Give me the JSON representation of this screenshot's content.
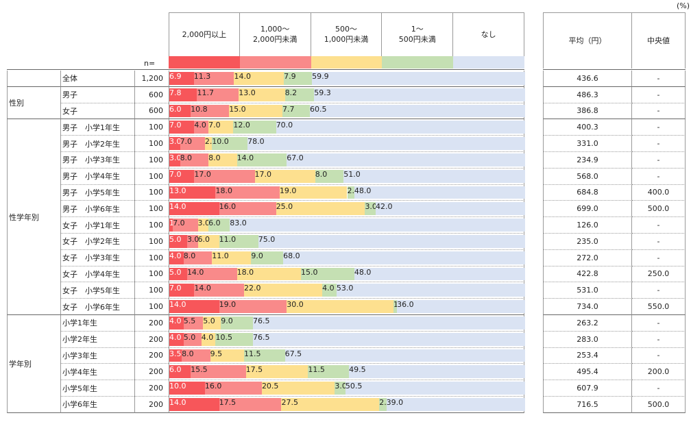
{
  "chart_data": {
    "type": "bar",
    "stacked": true,
    "orientation": "horizontal",
    "unit": "(%)",
    "n_label": "n=",
    "mean_header": "平均（円）",
    "median_header": "中央値",
    "row_groups": [
      null,
      "性別",
      "性別",
      "性学年別",
      "性学年別",
      "性学年別",
      "性学年別",
      "性学年別",
      "性学年別",
      "性学年別",
      "性学年別",
      "性学年別",
      "性学年別",
      "性学年別",
      "性学年別",
      "学年別",
      "学年別",
      "学年別",
      "学年別",
      "学年別",
      "学年別"
    ],
    "categories": [
      "全体",
      "男子",
      "女子",
      "男子　小学1年生",
      "男子　小学2年生",
      "男子　小学3年生",
      "男子　小学4年生",
      "男子　小学5年生",
      "男子　小学6年生",
      "女子　小学1年生",
      "女子　小学2年生",
      "女子　小学3年生",
      "女子　小学4年生",
      "女子　小学5年生",
      "女子　小学6年生",
      "小学1年生",
      "小学2年生",
      "小学3年生",
      "小学4年生",
      "小学5年生",
      "小学6年生"
    ],
    "n": [
      "1,200",
      "600",
      "600",
      "100",
      "100",
      "100",
      "100",
      "100",
      "100",
      "100",
      "100",
      "100",
      "100",
      "100",
      "100",
      "200",
      "200",
      "200",
      "200",
      "200",
      "200"
    ],
    "series": [
      {
        "name": "2,000円以上",
        "color": "#f7565a",
        "text_color": "#ffffff",
        "values": [
          6.9,
          7.8,
          6.0,
          7.0,
          3.0,
          3.0,
          7.0,
          13.0,
          14.0,
          1.0,
          5.0,
          4.0,
          5.0,
          7.0,
          14.0,
          4.0,
          4.0,
          3.5,
          6.0,
          10.0,
          14.0
        ],
        "value_labels": [
          "6.9",
          "7.8",
          "6.0",
          "7.0",
          "3.0",
          "3.0",
          "7.0",
          "13.0",
          "14.0",
          "1.0",
          "5.0",
          "4.0",
          "5.0",
          "7.0",
          "14.0",
          "4.0",
          "4.0",
          "3.5",
          "6.0",
          "10.0",
          "14.0"
        ]
      },
      {
        "name": "1,000～\n2,000円未満",
        "color": "#f98a8a",
        "text_color": "#222222",
        "values": [
          11.3,
          11.7,
          10.8,
          4.0,
          7.0,
          8.0,
          17.0,
          18.0,
          16.0,
          7.0,
          3.0,
          8.0,
          14.0,
          14.0,
          19.0,
          5.5,
          5.0,
          8.0,
          15.5,
          16.0,
          17.5
        ],
        "value_labels": [
          "11.3",
          "11.7",
          "10.8",
          "4.0",
          "7.0",
          "8.0",
          "17.0",
          "18.0",
          "16.0",
          "7.0",
          "3.0",
          "8.0",
          "14.0",
          "14.0",
          "19.0",
          "5.5",
          "5.0",
          "8.0",
          "15.5",
          "16.0",
          "17.5"
        ]
      },
      {
        "name": "500～\n1,000円未満",
        "color": "#fde08f",
        "text_color": "#222222",
        "values": [
          14.0,
          13.0,
          15.0,
          7.0,
          2.0,
          8.0,
          17.0,
          19.0,
          25.0,
          3.0,
          6.0,
          11.0,
          18.0,
          22.0,
          30.0,
          5.0,
          4.0,
          9.5,
          17.5,
          20.5,
          27.5
        ],
        "value_labels": [
          "14.0",
          "13.0",
          "15.0",
          "7.0",
          "2.0",
          "8.0",
          "17.0",
          "19.0",
          "25.0",
          "3.0",
          "6.0",
          "11.0",
          "18.0",
          "22.0",
          "30.0",
          "5.0",
          "4.0",
          "9.5",
          "17.5",
          "20.5",
          "27.5"
        ]
      },
      {
        "name": "1～\n500円未満",
        "color": "#c5e0b3",
        "text_color": "#222222",
        "values": [
          7.9,
          8.2,
          7.7,
          12.0,
          10.0,
          14.0,
          8.0,
          2.0,
          3.0,
          6.0,
          11.0,
          9.0,
          15.0,
          4.0,
          1.0,
          9.0,
          10.5,
          11.5,
          11.5,
          3.0,
          2.0
        ],
        "value_labels": [
          "7.9",
          "8.2",
          "7.7",
          "12.0",
          "10.0",
          "14.0",
          "8.0",
          "2.0",
          "3.0",
          "6.0",
          "11.0",
          "9.0",
          "15.0",
          "4.0",
          "1.0",
          "9.0",
          "10.5",
          "11.5",
          "11.5",
          "3.0",
          "2.0"
        ]
      },
      {
        "name": "なし",
        "color": "#dae3f3",
        "text_color": "#222222",
        "values": [
          59.9,
          59.3,
          60.5,
          70.0,
          78.0,
          67.0,
          51.0,
          48.0,
          42.0,
          83.0,
          75.0,
          68.0,
          48.0,
          53.0,
          36.0,
          76.5,
          76.5,
          67.5,
          49.5,
          50.5,
          39.0
        ],
        "value_labels": [
          "59.9",
          "59.3",
          "60.5",
          "70.0",
          "78.0",
          "67.0",
          "51.0",
          "48.0",
          "42.0",
          "83.0",
          "75.0",
          "68.0",
          "48.0",
          "53.0",
          "36.0",
          "76.5",
          "76.5",
          "67.5",
          "49.5",
          "50.5",
          "39.0"
        ]
      }
    ],
    "mean": [
      "436.6",
      "486.3",
      "386.8",
      "400.3",
      "331.0",
      "234.9",
      "568.0",
      "684.8",
      "699.0",
      "126.0",
      "235.0",
      "272.0",
      "422.8",
      "531.0",
      "734.0",
      "263.2",
      "283.0",
      "253.4",
      "495.4",
      "607.9",
      "716.5"
    ],
    "median": [
      "-",
      "-",
      "-",
      "-",
      "-",
      "-",
      "-",
      "400.0",
      "500.0",
      "-",
      "-",
      "-",
      "250.0",
      "-",
      "550.0",
      "-",
      "-",
      "-",
      "200.0",
      "-",
      "500.0"
    ]
  }
}
